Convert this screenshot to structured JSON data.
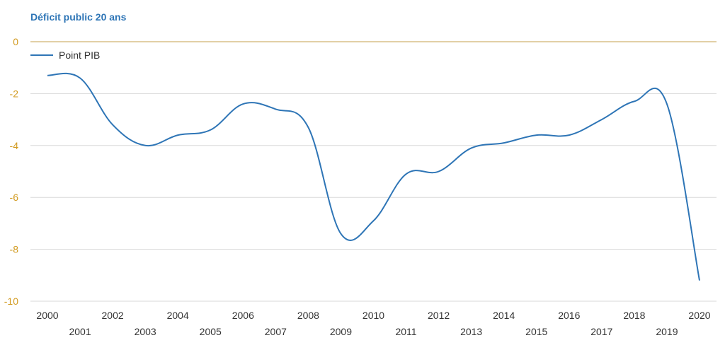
{
  "chart_data": {
    "type": "line",
    "title": "Déficit public 20 ans",
    "xlabel": "",
    "ylabel": "",
    "x": [
      "2000",
      "2001",
      "2002",
      "2003",
      "2004",
      "2005",
      "2006",
      "2007",
      "2008",
      "2009",
      "2010",
      "2011",
      "2012",
      "2013",
      "2014",
      "2015",
      "2016",
      "2017",
      "2018",
      "2019",
      "2020"
    ],
    "series": [
      {
        "name": "Point PIB",
        "values": [
          -1.3,
          -1.4,
          -3.2,
          -4.0,
          -3.6,
          -3.4,
          -2.4,
          -2.6,
          -3.3,
          -7.4,
          -6.9,
          -5.1,
          -5.0,
          -4.1,
          -3.9,
          -3.6,
          -3.6,
          -3.0,
          -2.3,
          -2.4,
          -9.2
        ]
      }
    ],
    "ylim": [
      -10,
      0
    ],
    "yticks": [
      0,
      -2,
      -4,
      -6,
      -8,
      -10
    ],
    "grid": true,
    "legend_position": "top-left",
    "colors": {
      "line": "#2e75b6",
      "title": "#2e75b6",
      "ytick": "#d19a1f",
      "zero_line": "#d9c089",
      "grid": "#d9d9d9"
    }
  }
}
